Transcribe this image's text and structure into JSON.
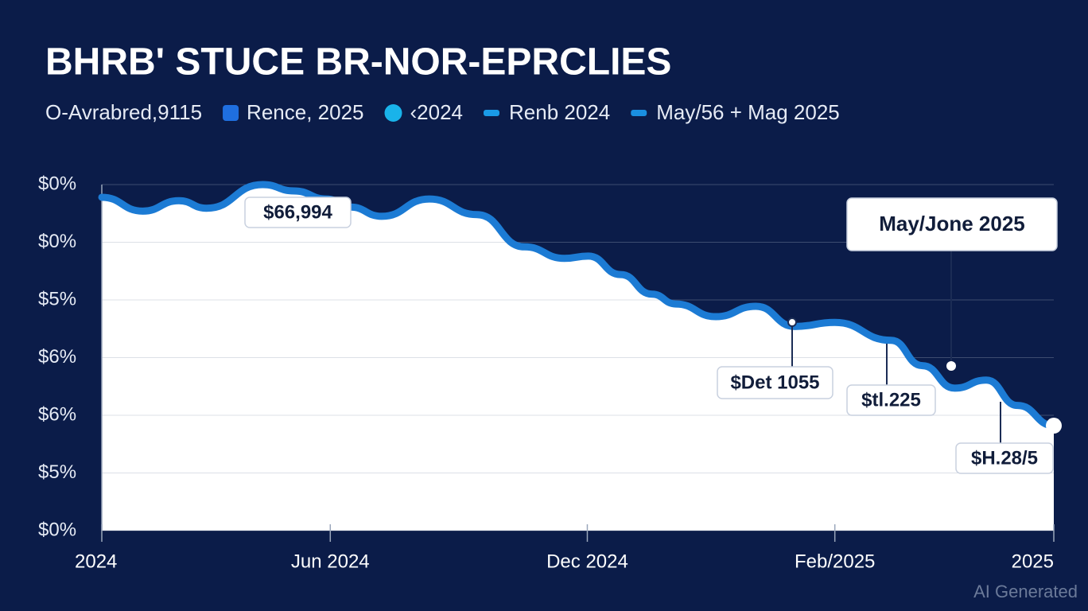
{
  "chart_data": {
    "type": "area-line",
    "title": "BHRB' STUCE BR-NOR-EPRCLIES",
    "legend_items": [
      {
        "label": "O-Avrabred,9115"
      },
      {
        "label": "Rence, 2025",
        "color": "#1f6fe0",
        "marker": "square"
      },
      {
        "label": "‹2024",
        "color": "#19b3ea",
        "marker": "circle"
      },
      {
        "label": "Renb 2024",
        "color": "#1a9be8",
        "marker": "dash"
      },
      {
        "label": "May/56 + Mag 2025",
        "color": "#1a8fe0",
        "marker": "dash"
      }
    ],
    "x": [
      0,
      4.3,
      8.1,
      11.0,
      16.9,
      20.2,
      23.6,
      26.1,
      29.4,
      34.4,
      39.4,
      44.4,
      48.6,
      51.1,
      54.5,
      57.8,
      60.3,
      64.5,
      68.7,
      72.8,
      77.0,
      82.9,
      86.2,
      89.6,
      92.9,
      96.2,
      100
    ],
    "values": [
      5.78,
      5.54,
      5.72,
      5.59,
      6.0,
      5.89,
      5.75,
      5.61,
      5.45,
      5.75,
      5.48,
      4.92,
      4.72,
      4.76,
      4.44,
      4.1,
      3.93,
      3.71,
      3.89,
      3.54,
      3.61,
      3.3,
      2.86,
      2.47,
      2.61,
      2.17,
      1.82
    ],
    "color": "#1c7bd4",
    "xlim": [
      0,
      100
    ],
    "xticks": [
      {
        "value": 0,
        "label": "2024"
      },
      {
        "value": 24,
        "label": "Jun 2024"
      },
      {
        "value": 51,
        "label": "Dec 2024"
      },
      {
        "value": 77,
        "label": "Feb/2025"
      },
      {
        "value": 100,
        "label": "2025"
      }
    ],
    "ylim": [
      0,
      6
    ],
    "yticks": [
      {
        "value": 0,
        "label": "$0%"
      },
      {
        "value": 1,
        "label": "$5%"
      },
      {
        "value": 2,
        "label": "$6%"
      },
      {
        "value": 3,
        "label": "$6%"
      },
      {
        "value": 4,
        "label": "$5%"
      },
      {
        "value": 5,
        "label": "$0%"
      },
      {
        "value": 6,
        "label": "$0%"
      }
    ],
    "grid": true,
    "annotations": [
      "$66,994",
      "$Det 1055",
      "$tl.225",
      "$H.28/5",
      "May/Jone 2025"
    ],
    "watermark": "AI Generated"
  }
}
